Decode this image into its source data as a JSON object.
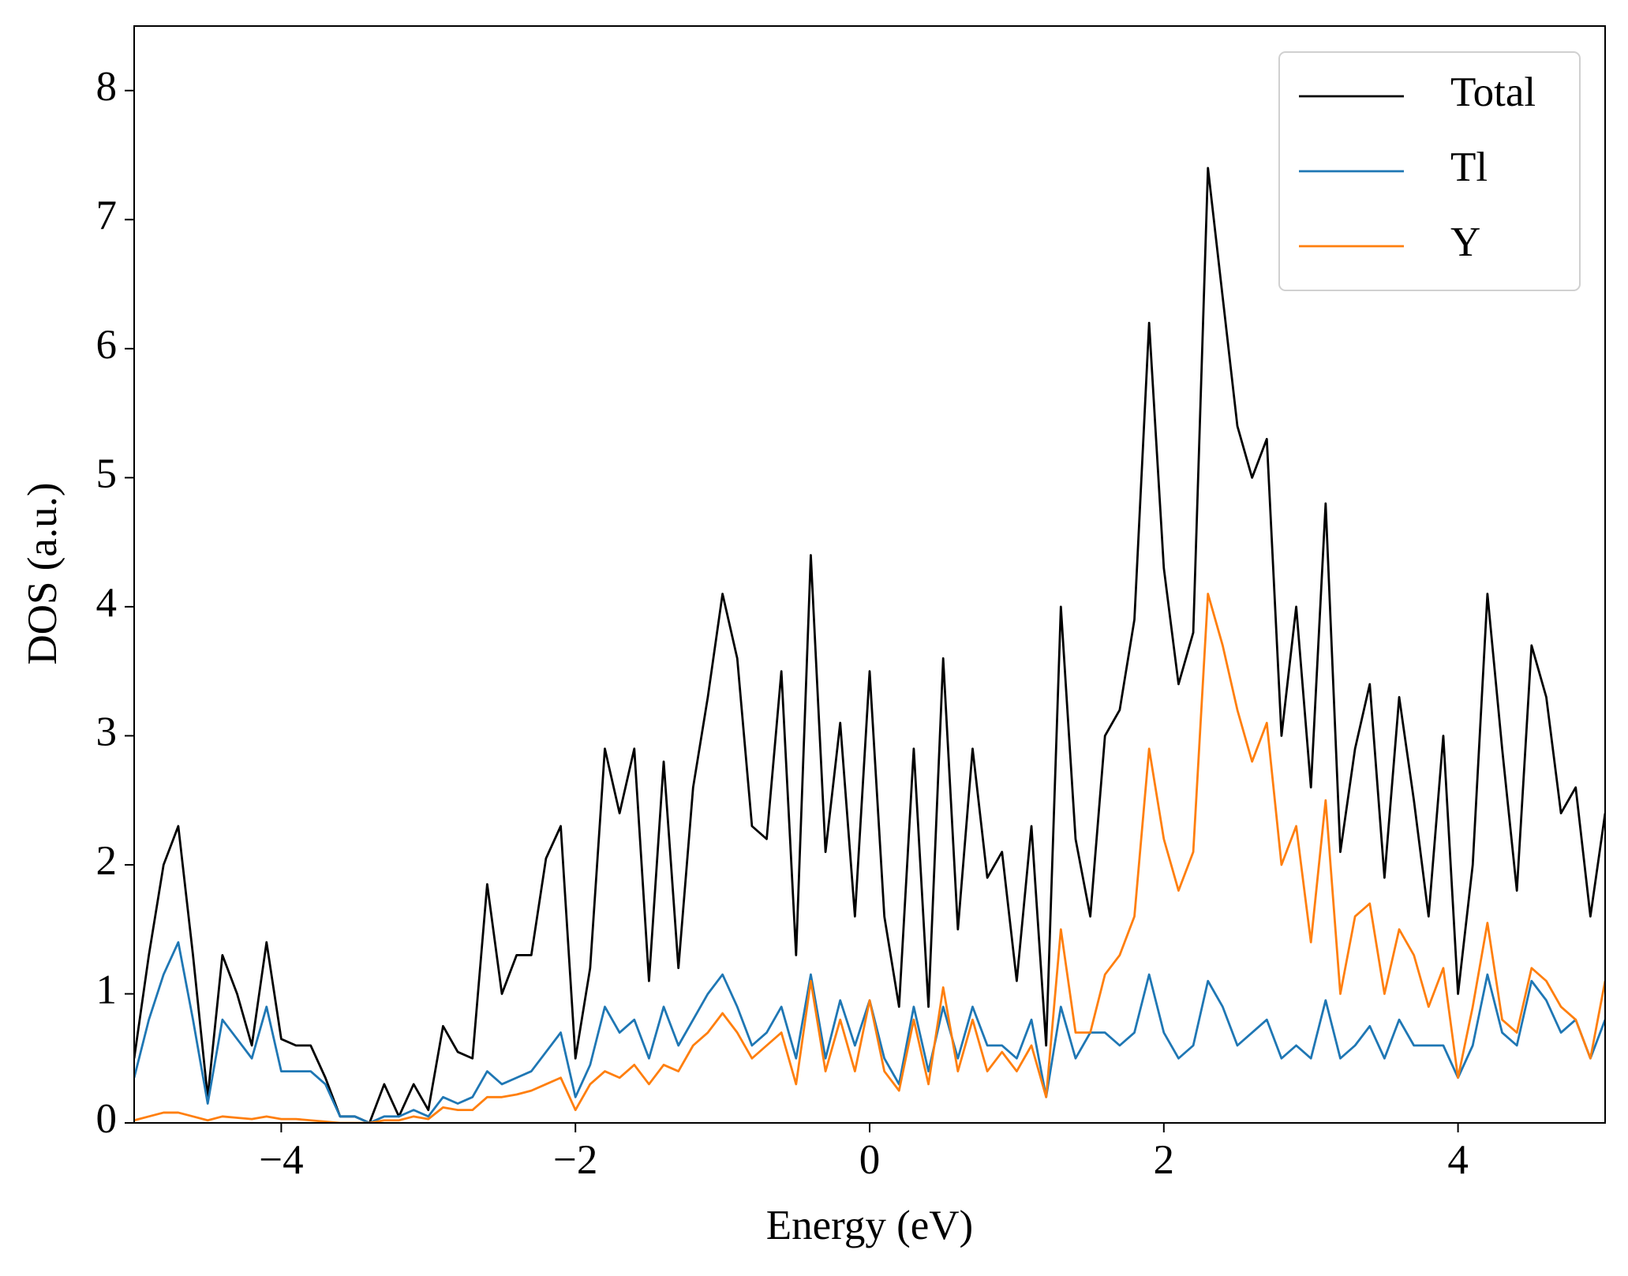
{
  "chart_data": {
    "type": "line",
    "xlabel": "Energy (eV)",
    "ylabel": "DOS (a.u.)",
    "x": [
      -5,
      -4.9,
      -4.8,
      -4.7,
      -4.6,
      -4.5,
      -4.4,
      -4.3,
      -4.2,
      -4.1,
      -4,
      -3.9,
      -3.8,
      -3.7,
      -3.6,
      -3.5,
      -3.4,
      -3.3,
      -3.2,
      -3.1,
      -3,
      -2.9,
      -2.8,
      -2.7,
      -2.6,
      -2.5,
      -2.4,
      -2.3,
      -2.2,
      -2.1,
      -2,
      -1.9,
      -1.8,
      -1.7,
      -1.6,
      -1.5,
      -1.4,
      -1.3,
      -1.2,
      -1.1,
      -1,
      -0.9,
      -0.8,
      -0.7,
      -0.6,
      -0.5,
      -0.4,
      -0.3,
      -0.2,
      -0.1,
      0,
      0.1,
      0.2,
      0.3,
      0.4,
      0.5,
      0.6,
      0.7,
      0.8,
      0.9,
      1,
      1.1,
      1.2,
      1.3,
      1.4,
      1.5,
      1.6,
      1.7,
      1.8,
      1.9,
      2,
      2.1,
      2.2,
      2.3,
      2.4,
      2.5,
      2.6,
      2.7,
      2.8,
      2.9,
      3,
      3.1,
      3.2,
      3.3,
      3.4,
      3.5,
      3.6,
      3.7,
      3.8,
      3.9,
      4,
      4.1,
      4.2,
      4.3,
      4.4,
      4.5,
      4.6,
      4.7,
      4.8,
      4.9,
      5
    ],
    "series": [
      {
        "name": "Total",
        "color": "#000000",
        "values": [
          0.5,
          1.3,
          2.0,
          2.3,
          1.3,
          0.2,
          1.3,
          1.0,
          0.6,
          1.4,
          0.65,
          0.6,
          0.6,
          0.35,
          0.05,
          0.05,
          0.0,
          0.3,
          0.05,
          0.3,
          0.1,
          0.75,
          0.55,
          0.5,
          1.85,
          1.0,
          1.3,
          1.3,
          2.05,
          2.3,
          0.5,
          1.2,
          2.9,
          2.4,
          2.9,
          1.1,
          2.8,
          1.2,
          2.6,
          3.3,
          4.1,
          3.6,
          2.3,
          2.2,
          3.5,
          1.3,
          4.4,
          2.1,
          3.1,
          1.6,
          3.5,
          1.6,
          0.9,
          2.9,
          0.9,
          3.6,
          1.5,
          2.9,
          1.9,
          2.1,
          1.1,
          2.3,
          0.6,
          4.0,
          2.2,
          1.6,
          3.0,
          3.2,
          3.9,
          6.2,
          4.3,
          3.4,
          3.8,
          7.4,
          6.4,
          5.4,
          5.0,
          5.3,
          3.0,
          4.0,
          2.6,
          4.8,
          2.1,
          2.9,
          3.4,
          1.9,
          3.3,
          2.5,
          1.6,
          3.0,
          1.0,
          2.0,
          4.1,
          2.9,
          1.8,
          3.7,
          3.3,
          2.4,
          2.6,
          1.6,
          2.4
        ]
      },
      {
        "name": "Tl",
        "color": "#1f77b4",
        "values": [
          0.35,
          0.8,
          1.15,
          1.4,
          0.8,
          0.15,
          0.8,
          0.65,
          0.5,
          0.9,
          0.4,
          0.4,
          0.4,
          0.3,
          0.05,
          0.05,
          0.0,
          0.05,
          0.05,
          0.1,
          0.05,
          0.2,
          0.15,
          0.2,
          0.4,
          0.3,
          0.35,
          0.4,
          0.55,
          0.7,
          0.2,
          0.45,
          0.9,
          0.7,
          0.8,
          0.5,
          0.9,
          0.6,
          0.8,
          1.0,
          1.15,
          0.9,
          0.6,
          0.7,
          0.9,
          0.5,
          1.15,
          0.5,
          0.95,
          0.6,
          0.95,
          0.5,
          0.3,
          0.9,
          0.4,
          0.9,
          0.5,
          0.9,
          0.6,
          0.6,
          0.5,
          0.8,
          0.2,
          0.9,
          0.5,
          0.7,
          0.7,
          0.6,
          0.7,
          1.15,
          0.7,
          0.5,
          0.6,
          1.1,
          0.9,
          0.6,
          0.7,
          0.8,
          0.5,
          0.6,
          0.5,
          0.95,
          0.5,
          0.6,
          0.75,
          0.5,
          0.8,
          0.6,
          0.6,
          0.6,
          0.35,
          0.6,
          1.15,
          0.7,
          0.6,
          1.1,
          0.95,
          0.7,
          0.8,
          0.5,
          0.8
        ]
      },
      {
        "name": "Y",
        "color": "#ff7f0e",
        "values": [
          0.02,
          0.05,
          0.08,
          0.08,
          0.05,
          0.02,
          0.05,
          0.04,
          0.03,
          0.05,
          0.03,
          0.03,
          0.02,
          0.01,
          0.0,
          0.0,
          0.0,
          0.02,
          0.02,
          0.05,
          0.03,
          0.12,
          0.1,
          0.1,
          0.2,
          0.2,
          0.22,
          0.25,
          0.3,
          0.35,
          0.1,
          0.3,
          0.4,
          0.35,
          0.45,
          0.3,
          0.45,
          0.4,
          0.6,
          0.7,
          0.85,
          0.7,
          0.5,
          0.6,
          0.7,
          0.3,
          1.1,
          0.4,
          0.8,
          0.4,
          0.95,
          0.4,
          0.25,
          0.8,
          0.3,
          1.05,
          0.4,
          0.8,
          0.4,
          0.55,
          0.4,
          0.6,
          0.2,
          1.5,
          0.7,
          0.7,
          1.15,
          1.3,
          1.6,
          2.9,
          2.2,
          1.8,
          2.1,
          4.1,
          3.7,
          3.2,
          2.8,
          3.1,
          2.0,
          2.3,
          1.4,
          2.5,
          1.0,
          1.6,
          1.7,
          1.0,
          1.5,
          1.3,
          0.9,
          1.2,
          0.35,
          0.9,
          1.55,
          0.8,
          0.7,
          1.2,
          1.1,
          0.9,
          0.8,
          0.5,
          1.1
        ]
      }
    ],
    "xlim": [
      -5,
      5
    ],
    "ylim": [
      0,
      8.5
    ],
    "xticks": [
      {
        "value": -4,
        "label": "−4"
      },
      {
        "value": -2,
        "label": "−2"
      },
      0,
      2,
      4
    ],
    "yticks": [
      0,
      1,
      2,
      3,
      4,
      5,
      6,
      7,
      8
    ],
    "grid": false,
    "legend": "upper right"
  }
}
